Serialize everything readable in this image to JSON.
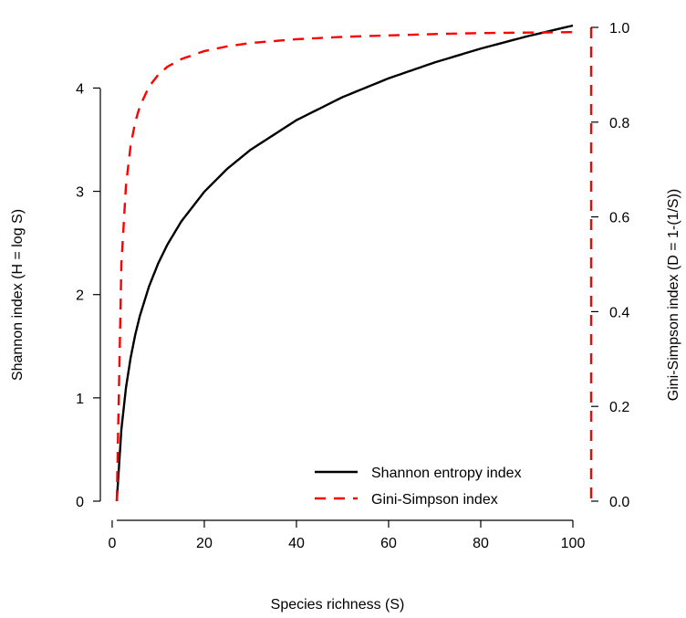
{
  "chart_data": {
    "type": "line",
    "xlabel": "Species richness (S)",
    "ylabel_left": "Shannon index (H = log S)",
    "ylabel_right": "Gini-Simpson index (D = 1-(1/S))",
    "xlim": [
      1,
      100
    ],
    "ylim_left": [
      0,
      4.605
    ],
    "ylim_right": [
      0,
      1
    ],
    "x_ticks": [
      "0",
      "20",
      "40",
      "60",
      "80",
      "100"
    ],
    "y_left_ticks": [
      "0",
      "1",
      "2",
      "3",
      "4"
    ],
    "y_right_ticks": [
      "0.0",
      "0.2",
      "0.4",
      "0.6",
      "0.8",
      "1.0"
    ],
    "legend_position": "bottom-right",
    "series": [
      {
        "name": "Shannon entropy index",
        "axis": "left",
        "color": "#000000",
        "style": "solid",
        "x": [
          1,
          2,
          3,
          4,
          5,
          6,
          8,
          10,
          12,
          15,
          20,
          25,
          30,
          40,
          50,
          60,
          70,
          80,
          90,
          100
        ],
        "y": [
          0,
          0.693,
          1.099,
          1.386,
          1.609,
          1.792,
          2.079,
          2.303,
          2.485,
          2.708,
          2.996,
          3.219,
          3.401,
          3.689,
          3.912,
          4.094,
          4.248,
          4.382,
          4.5,
          4.605
        ]
      },
      {
        "name": "Gini-Simpson index",
        "axis": "right",
        "color": "#ff0000",
        "style": "dashed",
        "x": [
          1,
          2,
          3,
          4,
          5,
          6,
          8,
          10,
          12,
          15,
          20,
          25,
          30,
          40,
          50,
          60,
          70,
          80,
          90,
          100
        ],
        "y": [
          0,
          0.5,
          0.667,
          0.75,
          0.8,
          0.833,
          0.875,
          0.9,
          0.917,
          0.933,
          0.95,
          0.96,
          0.967,
          0.975,
          0.98,
          0.983,
          0.986,
          0.988,
          0.989,
          0.99
        ]
      }
    ]
  }
}
